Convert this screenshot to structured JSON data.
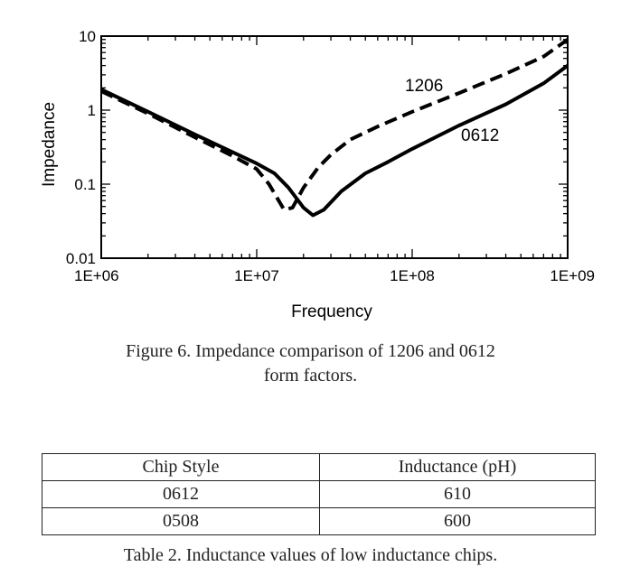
{
  "chart_data": {
    "type": "line",
    "xlabel": "Frequency",
    "ylabel": "Impedance",
    "xscale": "log",
    "yscale": "log",
    "xlim": [
      1000000,
      1000000000
    ],
    "ylim": [
      0.01,
      10
    ],
    "x_ticks": [
      "1E+06",
      "1E+07",
      "1E+08",
      "1E+09"
    ],
    "y_ticks": [
      "10",
      "1",
      "0.1",
      "0.01"
    ],
    "grid": false,
    "series": [
      {
        "name": "1206",
        "style": "dashed",
        "points": [
          [
            1000000,
            1.8
          ],
          [
            2000000,
            0.9
          ],
          [
            4000000,
            0.43
          ],
          [
            7000000,
            0.24
          ],
          [
            10000000,
            0.16
          ],
          [
            12000000,
            0.1
          ],
          [
            15000000,
            0.045
          ],
          [
            17000000,
            0.048
          ],
          [
            20000000,
            0.09
          ],
          [
            25000000,
            0.17
          ],
          [
            30000000,
            0.25
          ],
          [
            40000000,
            0.4
          ],
          [
            60000000,
            0.6
          ],
          [
            100000000,
            0.95
          ],
          [
            200000000,
            1.7
          ],
          [
            400000000,
            3.1
          ],
          [
            700000000,
            5.3
          ],
          [
            1000000000,
            9.0
          ]
        ]
      },
      {
        "name": "0612",
        "style": "solid",
        "points": [
          [
            1000000,
            1.9
          ],
          [
            2000000,
            0.95
          ],
          [
            4000000,
            0.47
          ],
          [
            7000000,
            0.27
          ],
          [
            10000000,
            0.19
          ],
          [
            13000000,
            0.14
          ],
          [
            16000000,
            0.09
          ],
          [
            20000000,
            0.048
          ],
          [
            23000000,
            0.038
          ],
          [
            27000000,
            0.045
          ],
          [
            35000000,
            0.08
          ],
          [
            50000000,
            0.14
          ],
          [
            70000000,
            0.2
          ],
          [
            100000000,
            0.3
          ],
          [
            200000000,
            0.62
          ],
          [
            400000000,
            1.2
          ],
          [
            700000000,
            2.3
          ],
          [
            1000000000,
            4.0
          ]
        ]
      }
    ]
  },
  "figure_caption": {
    "line1": "Figure 6. Impedance comparison of 1206 and 0612",
    "line2": "form factors."
  },
  "table": {
    "headers": [
      "Chip Style",
      "Inductance (pH)"
    ],
    "rows": [
      [
        "0612",
        "610"
      ],
      [
        "0508",
        "600"
      ]
    ],
    "caption": "Table 2. Inductance values of low inductance chips."
  }
}
